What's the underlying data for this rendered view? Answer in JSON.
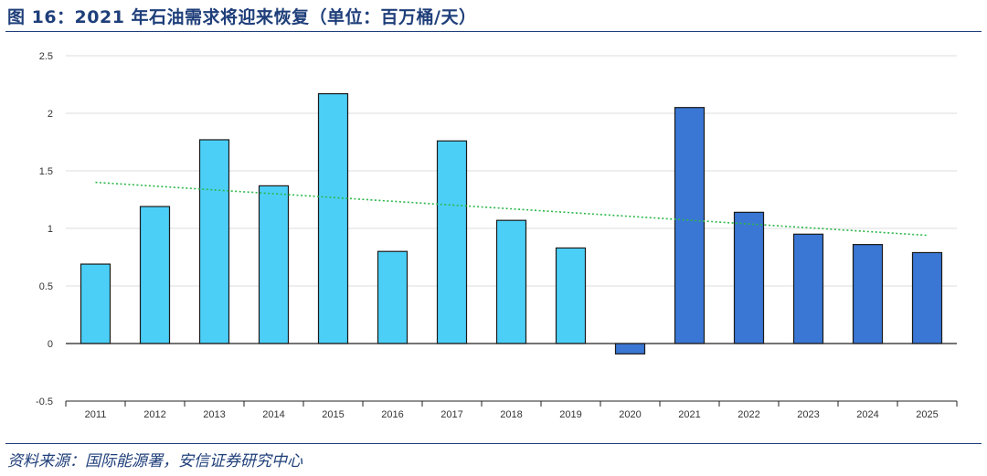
{
  "figure": {
    "title": "图 16：2021 年石油需求将迎来恢复（单位：百万桶/天）",
    "source": "资料来源：国际能源署，安信证券研究中心"
  },
  "chart_data": {
    "type": "bar",
    "categories": [
      "2011",
      "2012",
      "2013",
      "2014",
      "2015",
      "2016",
      "2017",
      "2018",
      "2019",
      "2020",
      "2021",
      "2022",
      "2023",
      "2024",
      "2025"
    ],
    "values": [
      0.69,
      1.19,
      1.77,
      1.37,
      2.17,
      0.8,
      1.76,
      1.07,
      0.83,
      -0.09,
      2.05,
      1.14,
      0.95,
      0.86,
      0.79
    ],
    "ylim": [
      -0.5,
      2.5
    ],
    "yticks": [
      -0.5,
      0,
      0.5,
      1,
      1.5,
      2,
      2.5
    ],
    "ytick_labels": [
      "-0.5",
      "0",
      "0.5",
      "1",
      "1.5",
      "2",
      "2.5"
    ],
    "trendline": {
      "style": "dotted",
      "color": "#2db84b",
      "start": 1.4,
      "end": 0.94
    },
    "colors": {
      "light_bar": "#4ccff7",
      "dark_bar": "#3a76d3",
      "bar_edge": "#1a1a1a",
      "grid": "#dddddd"
    },
    "dark_from_index": 9,
    "grid": true,
    "legend": "none"
  }
}
